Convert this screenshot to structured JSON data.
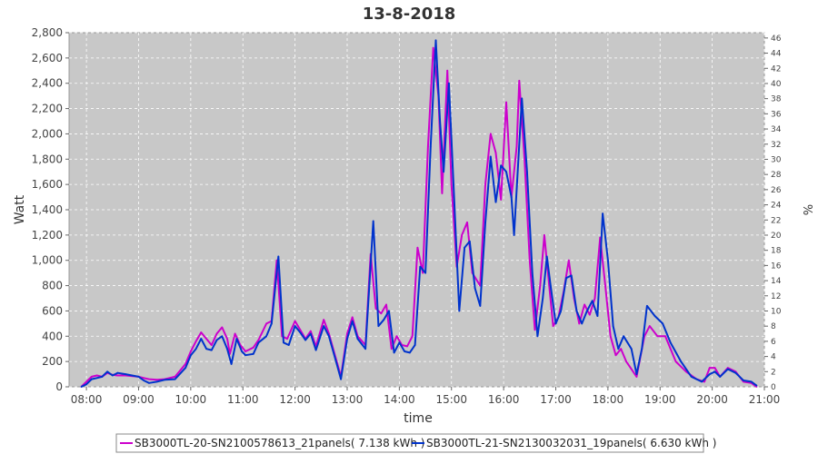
{
  "chart_data": {
    "type": "line",
    "title": "13-8-2018",
    "xlabel": "time",
    "ylabel": "Watt",
    "y2label": "%",
    "xlim": [
      7.667,
      21.0
    ],
    "ylim": [
      0,
      2800
    ],
    "y2lim": [
      0,
      46.7
    ],
    "grid": true,
    "legend_position": "bottom",
    "x_ticks": [
      "08:00",
      "09:00",
      "10:00",
      "11:00",
      "12:00",
      "13:00",
      "14:00",
      "15:00",
      "16:00",
      "17:00",
      "18:00",
      "19:00",
      "20:00",
      "21:00"
    ],
    "y_ticks": [
      "0",
      "200",
      "400",
      "600",
      "800",
      "1,000",
      "1,200",
      "1,400",
      "1,600",
      "1,800",
      "2,000",
      "2,200",
      "2,400",
      "2,600",
      "2,800"
    ],
    "y2_ticks": [
      "0",
      "2",
      "4",
      "6",
      "8",
      "10",
      "12",
      "14",
      "16",
      "18",
      "20",
      "22",
      "24",
      "26",
      "28",
      "30",
      "32",
      "34",
      "36",
      "38",
      "40",
      "42",
      "44",
      "46"
    ],
    "series": [
      {
        "name": "SB3000TL-20-SN2100578613_21panels( 7.138 kWh )",
        "color": "#cc00cc",
        "points": [
          [
            7.9,
            0
          ],
          [
            8.0,
            40
          ],
          [
            8.1,
            80
          ],
          [
            8.2,
            90
          ],
          [
            8.3,
            80
          ],
          [
            8.4,
            110
          ],
          [
            8.5,
            95
          ],
          [
            8.6,
            90
          ],
          [
            8.75,
            90
          ],
          [
            9.0,
            80
          ],
          [
            9.1,
            70
          ],
          [
            9.2,
            60
          ],
          [
            9.35,
            55
          ],
          [
            9.5,
            60
          ],
          [
            9.7,
            80
          ],
          [
            9.9,
            180
          ],
          [
            10.0,
            280
          ],
          [
            10.1,
            360
          ],
          [
            10.2,
            430
          ],
          [
            10.3,
            380
          ],
          [
            10.4,
            330
          ],
          [
            10.5,
            420
          ],
          [
            10.6,
            470
          ],
          [
            10.7,
            380
          ],
          [
            10.75,
            260
          ],
          [
            10.85,
            420
          ],
          [
            10.95,
            330
          ],
          [
            11.05,
            280
          ],
          [
            11.2,
            310
          ],
          [
            11.3,
            370
          ],
          [
            11.45,
            500
          ],
          [
            11.55,
            520
          ],
          [
            11.65,
            1000
          ],
          [
            11.75,
            400
          ],
          [
            11.85,
            380
          ],
          [
            12.0,
            520
          ],
          [
            12.1,
            450
          ],
          [
            12.2,
            380
          ],
          [
            12.3,
            440
          ],
          [
            12.4,
            320
          ],
          [
            12.55,
            530
          ],
          [
            12.65,
            420
          ],
          [
            12.8,
            200
          ],
          [
            12.88,
            80
          ],
          [
            13.0,
            420
          ],
          [
            13.1,
            550
          ],
          [
            13.2,
            400
          ],
          [
            13.35,
            330
          ],
          [
            13.45,
            1050
          ],
          [
            13.55,
            620
          ],
          [
            13.65,
            580
          ],
          [
            13.75,
            650
          ],
          [
            13.85,
            300
          ],
          [
            13.95,
            400
          ],
          [
            14.05,
            330
          ],
          [
            14.15,
            320
          ],
          [
            14.25,
            400
          ],
          [
            14.35,
            1100
          ],
          [
            14.45,
            900
          ],
          [
            14.55,
            1900
          ],
          [
            14.65,
            2680
          ],
          [
            14.75,
            2300
          ],
          [
            14.82,
            1530
          ],
          [
            14.92,
            2500
          ],
          [
            15.0,
            1600
          ],
          [
            15.1,
            950
          ],
          [
            15.2,
            1200
          ],
          [
            15.3,
            1300
          ],
          [
            15.4,
            900
          ],
          [
            15.55,
            800
          ],
          [
            15.65,
            1600
          ],
          [
            15.75,
            2000
          ],
          [
            15.85,
            1850
          ],
          [
            15.95,
            1480
          ],
          [
            16.05,
            2250
          ],
          [
            16.15,
            1500
          ],
          [
            16.25,
            1900
          ],
          [
            16.3,
            2420
          ],
          [
            16.4,
            1800
          ],
          [
            16.5,
            1000
          ],
          [
            16.6,
            450
          ],
          [
            16.7,
            800
          ],
          [
            16.78,
            1200
          ],
          [
            16.85,
            900
          ],
          [
            16.95,
            480
          ],
          [
            17.05,
            550
          ],
          [
            17.15,
            750
          ],
          [
            17.25,
            1000
          ],
          [
            17.35,
            700
          ],
          [
            17.45,
            500
          ],
          [
            17.55,
            650
          ],
          [
            17.65,
            570
          ],
          [
            17.75,
            700
          ],
          [
            17.85,
            1180
          ],
          [
            17.95,
            800
          ],
          [
            18.05,
            400
          ],
          [
            18.15,
            250
          ],
          [
            18.25,
            300
          ],
          [
            18.35,
            200
          ],
          [
            18.55,
            80
          ],
          [
            18.7,
            400
          ],
          [
            18.8,
            480
          ],
          [
            18.95,
            400
          ],
          [
            19.1,
            400
          ],
          [
            19.3,
            200
          ],
          [
            19.5,
            120
          ],
          [
            19.7,
            60
          ],
          [
            19.85,
            40
          ],
          [
            19.95,
            150
          ],
          [
            20.05,
            150
          ],
          [
            20.15,
            80
          ],
          [
            20.3,
            150
          ],
          [
            20.45,
            120
          ],
          [
            20.6,
            40
          ],
          [
            20.75,
            30
          ],
          [
            20.85,
            0
          ]
        ]
      },
      {
        "name": "SB3000TL-21-SN2130032031_19panels( 6.630 kWh )",
        "color": "#0033cc",
        "points": [
          [
            7.9,
            0
          ],
          [
            8.0,
            20
          ],
          [
            8.1,
            60
          ],
          [
            8.2,
            70
          ],
          [
            8.3,
            80
          ],
          [
            8.4,
            120
          ],
          [
            8.5,
            90
          ],
          [
            8.6,
            110
          ],
          [
            8.75,
            100
          ],
          [
            9.0,
            80
          ],
          [
            9.1,
            50
          ],
          [
            9.2,
            30
          ],
          [
            9.35,
            40
          ],
          [
            9.5,
            55
          ],
          [
            9.7,
            60
          ],
          [
            9.9,
            150
          ],
          [
            10.0,
            250
          ],
          [
            10.1,
            300
          ],
          [
            10.2,
            380
          ],
          [
            10.3,
            300
          ],
          [
            10.4,
            290
          ],
          [
            10.5,
            370
          ],
          [
            10.6,
            400
          ],
          [
            10.7,
            300
          ],
          [
            10.78,
            180
          ],
          [
            10.88,
            380
          ],
          [
            10.98,
            280
          ],
          [
            11.05,
            250
          ],
          [
            11.2,
            260
          ],
          [
            11.3,
            350
          ],
          [
            11.45,
            400
          ],
          [
            11.55,
            500
          ],
          [
            11.68,
            1030
          ],
          [
            11.78,
            350
          ],
          [
            11.88,
            330
          ],
          [
            12.0,
            480
          ],
          [
            12.1,
            430
          ],
          [
            12.2,
            370
          ],
          [
            12.3,
            420
          ],
          [
            12.4,
            290
          ],
          [
            12.55,
            480
          ],
          [
            12.65,
            400
          ],
          [
            12.8,
            180
          ],
          [
            12.88,
            60
          ],
          [
            13.0,
            380
          ],
          [
            13.1,
            520
          ],
          [
            13.2,
            380
          ],
          [
            13.35,
            300
          ],
          [
            13.5,
            1310
          ],
          [
            13.6,
            480
          ],
          [
            13.7,
            530
          ],
          [
            13.8,
            600
          ],
          [
            13.9,
            270
          ],
          [
            14.0,
            350
          ],
          [
            14.1,
            280
          ],
          [
            14.2,
            270
          ],
          [
            14.3,
            330
          ],
          [
            14.4,
            950
          ],
          [
            14.5,
            900
          ],
          [
            14.6,
            1900
          ],
          [
            14.7,
            2740
          ],
          [
            14.78,
            2100
          ],
          [
            14.85,
            1700
          ],
          [
            14.95,
            2400
          ],
          [
            15.05,
            1500
          ],
          [
            15.15,
            600
          ],
          [
            15.25,
            1100
          ],
          [
            15.35,
            1150
          ],
          [
            15.45,
            780
          ],
          [
            15.55,
            640
          ],
          [
            15.65,
            1300
          ],
          [
            15.75,
            1820
          ],
          [
            15.85,
            1460
          ],
          [
            15.95,
            1750
          ],
          [
            16.05,
            1700
          ],
          [
            16.15,
            1500
          ],
          [
            16.2,
            1200
          ],
          [
            16.35,
            2280
          ],
          [
            16.45,
            1700
          ],
          [
            16.55,
            900
          ],
          [
            16.65,
            400
          ],
          [
            16.75,
            700
          ],
          [
            16.83,
            1030
          ],
          [
            16.9,
            800
          ],
          [
            17.0,
            500
          ],
          [
            17.1,
            600
          ],
          [
            17.2,
            860
          ],
          [
            17.3,
            880
          ],
          [
            17.4,
            600
          ],
          [
            17.5,
            500
          ],
          [
            17.6,
            600
          ],
          [
            17.7,
            680
          ],
          [
            17.8,
            560
          ],
          [
            17.9,
            1370
          ],
          [
            18.0,
            1000
          ],
          [
            18.1,
            480
          ],
          [
            18.2,
            300
          ],
          [
            18.3,
            400
          ],
          [
            18.45,
            300
          ],
          [
            18.55,
            100
          ],
          [
            18.65,
            300
          ],
          [
            18.75,
            640
          ],
          [
            18.9,
            560
          ],
          [
            19.05,
            500
          ],
          [
            19.2,
            350
          ],
          [
            19.4,
            200
          ],
          [
            19.6,
            80
          ],
          [
            19.8,
            40
          ],
          [
            19.95,
            100
          ],
          [
            20.05,
            120
          ],
          [
            20.15,
            80
          ],
          [
            20.3,
            140
          ],
          [
            20.45,
            110
          ],
          [
            20.6,
            50
          ],
          [
            20.75,
            40
          ],
          [
            20.85,
            10
          ]
        ]
      }
    ]
  }
}
